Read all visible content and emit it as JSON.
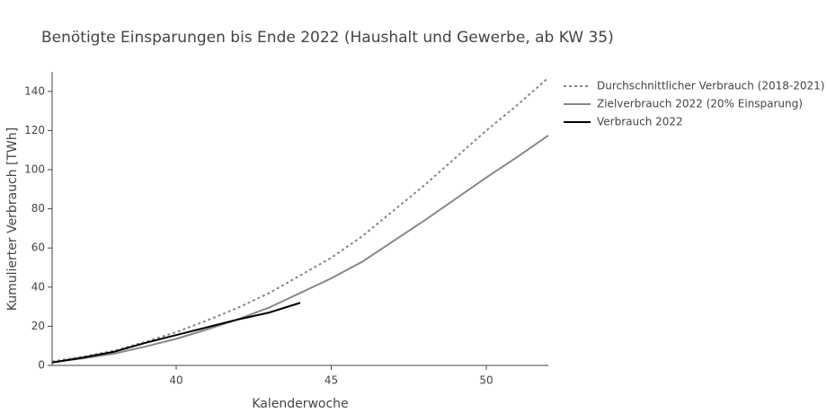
{
  "chart_data": {
    "type": "line",
    "title": "Benötigte Einsparungen bis Ende 2022 (Haushalt und Gewerbe, ab KW 35)",
    "x_label": "Kalenderwoche",
    "y_label": "Kumulierter Verbrauch [TWh]",
    "x": [
      36,
      37,
      38,
      39,
      40,
      41,
      42,
      43,
      44,
      45,
      46,
      47,
      48,
      49,
      50,
      51,
      52
    ],
    "series": [
      {
        "name": "Durchschnittlicher Verbrauch (2018-2021)",
        "color": "#888888",
        "dash": true,
        "values": [
          2,
          4.5,
          7.5,
          12,
          17,
          23,
          29.5,
          37,
          46,
          55,
          66,
          79,
          92,
          106,
          120,
          133,
          147
        ]
      },
      {
        "name": "Zielverbrauch 2022 (20% Einsparung)",
        "color": "#888888",
        "dash": false,
        "values": [
          1.6,
          3.6,
          6,
          9.6,
          13.6,
          18.4,
          23.6,
          29.6,
          37,
          44.5,
          53,
          63.5,
          74,
          85,
          96,
          106.5,
          117.5
        ]
      },
      {
        "name": "Verbrauch 2022",
        "color": "#000000",
        "dash": false,
        "values": [
          1.5,
          4,
          7,
          11.5,
          15.5,
          19.5,
          23.5,
          27,
          32,
          null,
          null,
          null,
          null,
          null,
          null,
          null,
          null
        ]
      }
    ],
    "xlim": [
      36,
      52
    ],
    "xticks": [
      40,
      45,
      50
    ],
    "ylim": [
      0,
      150
    ],
    "yticks": [
      0,
      20,
      40,
      60,
      80,
      100,
      120,
      140
    ],
    "legend": "outside-right",
    "grid": false
  }
}
